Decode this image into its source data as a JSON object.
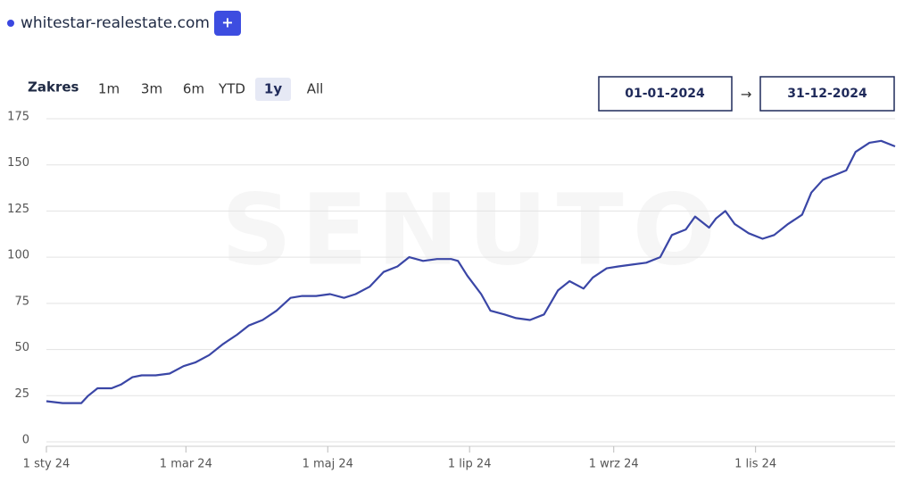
{
  "header": {
    "site": "whitestar-realestate.com",
    "add_button": "+"
  },
  "range": {
    "label": "Zakres",
    "options": [
      "1m",
      "3m",
      "6m",
      "YTD",
      "1y",
      "All"
    ],
    "active": "1y",
    "date_from": "01-01-2024",
    "separator": "→",
    "date_to": "31-12-2024"
  },
  "chart_data": {
    "type": "line",
    "watermark": "SENUTO",
    "x": [
      "2024-01-01",
      "2024-01-08",
      "2024-01-16",
      "2024-01-19",
      "2024-01-23",
      "2024-01-29",
      "2024-02-02",
      "2024-02-07",
      "2024-02-11",
      "2024-02-17",
      "2024-02-23",
      "2024-02-29",
      "2024-03-05",
      "2024-03-11",
      "2024-03-17",
      "2024-03-23",
      "2024-03-28",
      "2024-04-03",
      "2024-04-09",
      "2024-04-15",
      "2024-04-20",
      "2024-04-26",
      "2024-05-02",
      "2024-05-08",
      "2024-05-13",
      "2024-05-19",
      "2024-05-25",
      "2024-05-31",
      "2024-06-05",
      "2024-06-11",
      "2024-06-17",
      "2024-06-23",
      "2024-06-26",
      "2024-06-30",
      "2024-07-06",
      "2024-07-10",
      "2024-07-16",
      "2024-07-21",
      "2024-07-27",
      "2024-08-02",
      "2024-08-08",
      "2024-08-13",
      "2024-08-19",
      "2024-08-23",
      "2024-08-29",
      "2024-09-03",
      "2024-09-09",
      "2024-09-15",
      "2024-09-21",
      "2024-09-26",
      "2024-10-02",
      "2024-10-06",
      "2024-10-12",
      "2024-10-15",
      "2024-10-19",
      "2024-10-23",
      "2024-10-29",
      "2024-11-04",
      "2024-11-09",
      "2024-11-15",
      "2024-11-21",
      "2024-11-25",
      "2024-11-30",
      "2024-12-06",
      "2024-12-10",
      "2024-12-14",
      "2024-12-20",
      "2024-12-25",
      "2024-12-31"
    ],
    "series": [
      {
        "name": "whitestar-realestate.com",
        "color": "#3a46a6",
        "values": [
          22,
          21,
          21,
          25,
          29,
          29,
          31,
          35,
          36,
          36,
          37,
          41,
          43,
          47,
          53,
          58,
          63,
          66,
          71,
          78,
          79,
          79,
          80,
          78,
          80,
          84,
          92,
          95,
          100,
          98,
          99,
          99,
          98,
          90,
          80,
          71,
          69,
          67,
          66,
          69,
          82,
          87,
          83,
          89,
          94,
          95,
          96,
          97,
          100,
          112,
          115,
          122,
          116,
          121,
          125,
          118,
          113,
          110,
          112,
          118,
          123,
          135,
          142,
          145,
          147,
          157,
          162,
          163,
          160
        ]
      }
    ],
    "xlim": [
      "2024-01-01",
      "2024-12-31"
    ],
    "xticks": [
      {
        "value": "2024-01-01",
        "label": "1 sty 24"
      },
      {
        "value": "2024-03-01",
        "label": "1 mar 24"
      },
      {
        "value": "2024-05-01",
        "label": "1 maj 24"
      },
      {
        "value": "2024-07-01",
        "label": "1 lip 24"
      },
      {
        "value": "2024-09-01",
        "label": "1 wrz 24"
      },
      {
        "value": "2024-11-01",
        "label": "1 lis 24"
      }
    ],
    "ylim": [
      0,
      175
    ],
    "yticks": [
      0,
      25,
      50,
      75,
      100,
      125,
      150,
      175
    ],
    "grid": true
  }
}
